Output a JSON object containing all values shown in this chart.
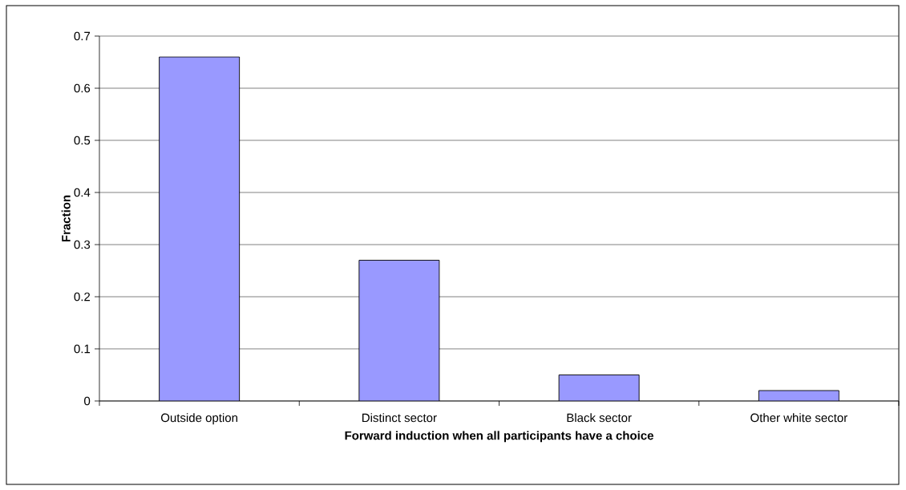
{
  "chart_data": {
    "type": "bar",
    "xlabel": "Forward induction when all participants have a choice",
    "ylabel": "Fraction",
    "categories": [
      "Outside option",
      "Distinct sector",
      "Black sector",
      "Other white sector"
    ],
    "values": [
      0.66,
      0.27,
      0.05,
      0.02
    ],
    "color": "#9999ff",
    "ylim": [
      0,
      0.7
    ],
    "yticks": [
      0,
      0.1,
      0.2,
      0.3,
      0.4,
      0.5,
      0.6,
      0.7
    ],
    "grid": "y"
  }
}
